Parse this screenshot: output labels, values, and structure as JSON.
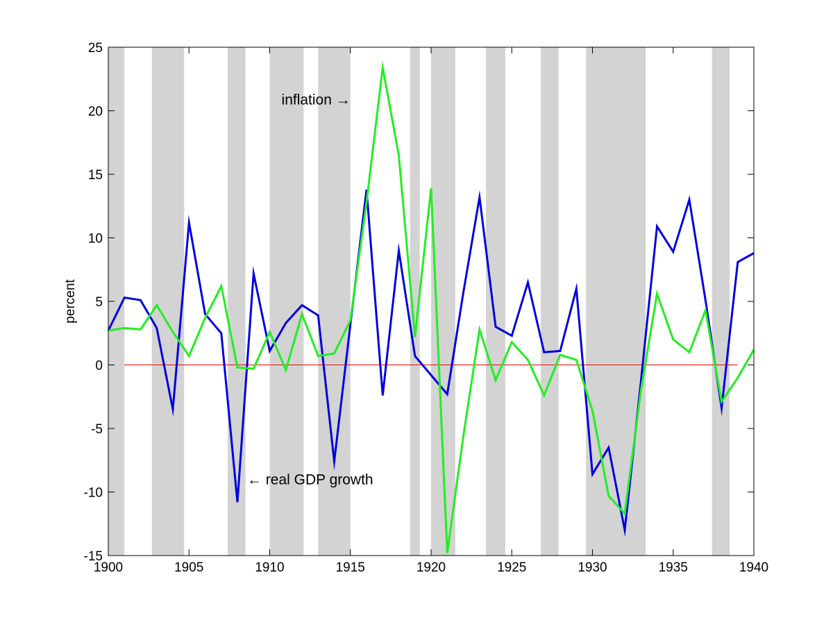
{
  "chart_data": {
    "type": "line",
    "title": "",
    "xlabel": "",
    "ylabel": "percent",
    "xlim": [
      1900,
      1940
    ],
    "ylim": [
      -15,
      25
    ],
    "x_ticks": [
      1900,
      1905,
      1910,
      1915,
      1920,
      1925,
      1930,
      1935,
      1940
    ],
    "y_ticks": [
      -15,
      -10,
      -5,
      0,
      5,
      10,
      15,
      20,
      25
    ],
    "grid": false,
    "legend": "none",
    "x": [
      1900,
      1901,
      1902,
      1903,
      1904,
      1905,
      1906,
      1907,
      1908,
      1909,
      1910,
      1911,
      1912,
      1913,
      1914,
      1915,
      1916,
      1917,
      1918,
      1919,
      1920,
      1921,
      1922,
      1923,
      1924,
      1925,
      1926,
      1927,
      1928,
      1929,
      1930,
      1931,
      1932,
      1933,
      1934,
      1935,
      1936,
      1937,
      1938,
      1939,
      1940
    ],
    "series": [
      {
        "name": "real GDP growth",
        "color": "#0000dd",
        "values": [
          2.7,
          5.3,
          5.1,
          2.9,
          -3.5,
          11.2,
          4.0,
          2.5,
          -10.8,
          7.2,
          1.1,
          3.3,
          4.7,
          3.9,
          -7.6,
          3.2,
          13.8,
          -2.4,
          9.0,
          0.7,
          -0.8,
          -2.3,
          5.7,
          13.2,
          3.0,
          2.3,
          6.5,
          1.0,
          1.1,
          6.0,
          -8.6,
          -6.5,
          -13.0,
          -1.3,
          10.9,
          8.9,
          13.0,
          5.1,
          -3.4,
          8.1,
          8.8
        ]
      },
      {
        "name": "inflation",
        "color": "#22ee22",
        "values": [
          2.7,
          2.9,
          2.8,
          4.7,
          2.6,
          0.7,
          3.7,
          6.2,
          -0.2,
          -0.3,
          2.6,
          -0.4,
          4.0,
          0.7,
          0.9,
          3.5,
          12.8,
          23.4,
          16.5,
          2.2,
          13.9,
          -14.8,
          -5.6,
          2.8,
          -1.2,
          1.8,
          0.4,
          -2.4,
          0.8,
          0.4,
          -3.6,
          -10.3,
          -11.7,
          -2.0,
          5.6,
          2.0,
          1.0,
          4.3,
          -2.9,
          -1.0,
          1.2
        ]
      }
    ],
    "zero_line": {
      "value": 0,
      "from": 1901,
      "to": 1939,
      "color": "#ee0000"
    },
    "shaded_periods": [
      [
        1900.0,
        1901.0
      ],
      [
        1902.7,
        1904.7
      ],
      [
        1907.4,
        1908.5
      ],
      [
        1910.0,
        1912.1
      ],
      [
        1913.0,
        1915.0
      ],
      [
        1918.7,
        1919.3
      ],
      [
        1920.0,
        1921.5
      ],
      [
        1923.4,
        1924.6
      ],
      [
        1926.8,
        1927.9
      ],
      [
        1929.6,
        1933.3
      ],
      [
        1937.4,
        1938.5
      ]
    ],
    "shade_color": "#d3d3d3",
    "annotations": [
      {
        "text": "inflation →",
        "x": 1915.0,
        "y": 20.5,
        "anchor": "end"
      },
      {
        "text": "← real GDP growth",
        "x": 1908.6,
        "y": -9.4,
        "anchor": "start"
      }
    ]
  }
}
